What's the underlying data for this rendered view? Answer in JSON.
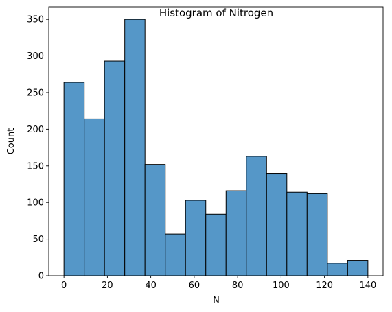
{
  "chart_data": {
    "type": "bar",
    "title": "Histogram of Nitrogen",
    "xlabel": "N",
    "ylabel": "Count",
    "xlim": [
      -7,
      147
    ],
    "ylim": [
      0,
      367
    ],
    "x_ticks": [
      0,
      20,
      40,
      60,
      80,
      100,
      120,
      140
    ],
    "y_ticks": [
      0,
      50,
      100,
      150,
      200,
      250,
      300,
      350
    ],
    "bin_edges": [
      0,
      9.333,
      18.667,
      28,
      37.333,
      46.667,
      56,
      65.333,
      74.667,
      84,
      93.333,
      102.667,
      112,
      121.333,
      130.667,
      140
    ],
    "values": [
      264,
      214,
      293,
      350,
      152,
      57,
      103,
      84,
      116,
      163,
      139,
      114,
      112,
      17,
      21
    ],
    "bar_color": "#5597c8",
    "edge_color": "#000000",
    "grid": false
  }
}
